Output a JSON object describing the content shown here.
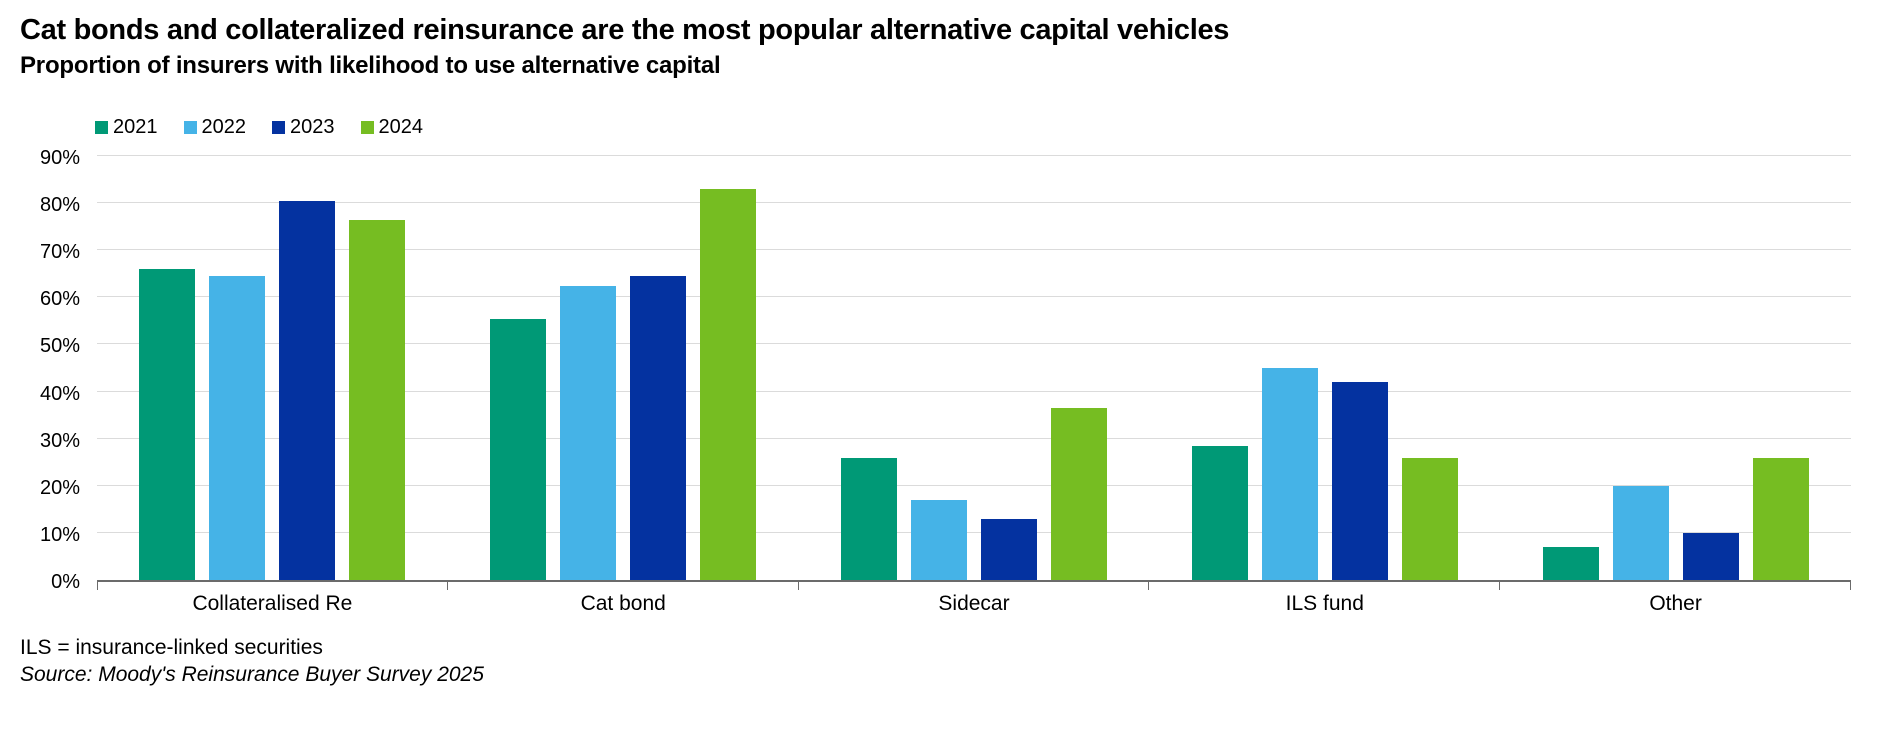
{
  "header": {
    "title": "Cat bonds and collateralized reinsurance are the most popular alternative capital vehicles",
    "subtitle": "Proportion of insurers with likelihood to use alternative capital"
  },
  "chart_data": {
    "type": "bar",
    "categories": [
      "Collateralised Re",
      "Cat bond",
      "Sidecar",
      "ILS fund",
      "Other"
    ],
    "series": [
      {
        "name": "2021",
        "color": "#009976",
        "values": [
          66,
          55.5,
          26,
          28.5,
          7
        ]
      },
      {
        "name": "2022",
        "color": "#45B3E7",
        "values": [
          64.5,
          62.5,
          17,
          45,
          20
        ]
      },
      {
        "name": "2023",
        "color": "#0432A0",
        "values": [
          80.5,
          64.5,
          13,
          42,
          10
        ]
      },
      {
        "name": "2024",
        "color": "#76BD22",
        "values": [
          76.5,
          83,
          36.5,
          26,
          26
        ]
      }
    ],
    "y_ticks": [
      "0%",
      "10%",
      "20%",
      "30%",
      "40%",
      "50%",
      "60%",
      "70%",
      "80%",
      "90%"
    ],
    "ylim": [
      0,
      90
    ],
    "grid": true,
    "legend_position": "top-left",
    "axis_color": "#6B6B6B",
    "grid_color": "#DBDBDB"
  },
  "footer": {
    "note": "ILS = insurance-linked securities",
    "source": "Source: Moody's Reinsurance Buyer Survey 2025"
  }
}
